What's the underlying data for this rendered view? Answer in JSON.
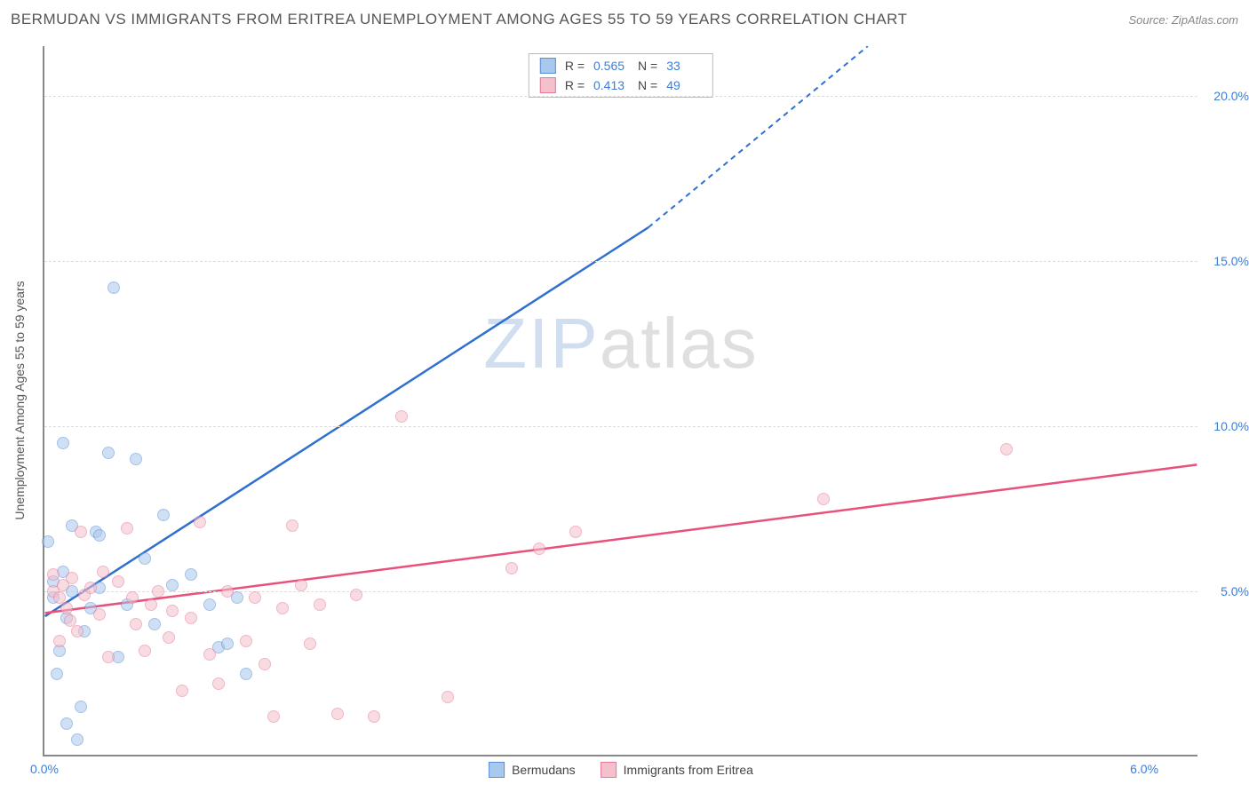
{
  "header": {
    "title": "BERMUDAN VS IMMIGRANTS FROM ERITREA UNEMPLOYMENT AMONG AGES 55 TO 59 YEARS CORRELATION CHART",
    "source": "Source: ZipAtlas.com"
  },
  "watermark": {
    "left": "ZIP",
    "right": "atlas"
  },
  "chart": {
    "type": "scatter-with-regression",
    "y_axis_title": "Unemployment Among Ages 55 to 59 years",
    "background_color": "#ffffff",
    "grid_color": "#dddddd",
    "axis_color": "#888888",
    "xlim": [
      0.0,
      6.3
    ],
    "ylim": [
      0.0,
      21.5
    ],
    "x_ticks": [
      {
        "v": 0.0,
        "label": "0.0%"
      },
      {
        "v": 6.0,
        "label": "6.0%"
      }
    ],
    "y_ticks": [
      {
        "v": 5.0,
        "label": "5.0%"
      },
      {
        "v": 10.0,
        "label": "10.0%"
      },
      {
        "v": 15.0,
        "label": "15.0%"
      },
      {
        "v": 20.0,
        "label": "20.0%"
      }
    ],
    "point_radius": 7,
    "point_opacity": 0.55,
    "series": [
      {
        "id": "bermudans",
        "label": "Bermudans",
        "color_fill": "#a8c8ed",
        "color_stroke": "#5a8fd6",
        "trend_color": "#2e6fd0",
        "stats": {
          "R": "0.565",
          "N": "33"
        },
        "trend": {
          "x1": 0.0,
          "y1": 4.2,
          "x2_solid": 3.3,
          "y2_solid": 16.0,
          "x2_dash": 4.5,
          "y2_dash": 21.5
        },
        "points": [
          [
            0.02,
            6.5
          ],
          [
            0.05,
            4.8
          ],
          [
            0.05,
            5.3
          ],
          [
            0.07,
            2.5
          ],
          [
            0.08,
            3.2
          ],
          [
            0.1,
            5.6
          ],
          [
            0.1,
            9.5
          ],
          [
            0.12,
            1.0
          ],
          [
            0.15,
            5.0
          ],
          [
            0.15,
            7.0
          ],
          [
            0.18,
            0.5
          ],
          [
            0.2,
            1.5
          ],
          [
            0.22,
            3.8
          ],
          [
            0.25,
            4.5
          ],
          [
            0.28,
            6.8
          ],
          [
            0.3,
            5.1
          ],
          [
            0.35,
            9.2
          ],
          [
            0.38,
            14.2
          ],
          [
            0.4,
            3.0
          ],
          [
            0.45,
            4.6
          ],
          [
            0.5,
            9.0
          ],
          [
            0.55,
            6.0
          ],
          [
            0.6,
            4.0
          ],
          [
            0.65,
            7.3
          ],
          [
            0.7,
            5.2
          ],
          [
            0.8,
            5.5
          ],
          [
            0.9,
            4.6
          ],
          [
            0.95,
            3.3
          ],
          [
            1.0,
            3.4
          ],
          [
            1.05,
            4.8
          ],
          [
            1.1,
            2.5
          ],
          [
            0.3,
            6.7
          ],
          [
            0.12,
            4.2
          ]
        ]
      },
      {
        "id": "eritrea",
        "label": "Immigrants from Eritrea",
        "color_fill": "#f4c0cc",
        "color_stroke": "#e67a9a",
        "trend_color": "#e7517b",
        "stats": {
          "R": "0.413",
          "N": "49"
        },
        "trend": {
          "x1": 0.0,
          "y1": 4.3,
          "x2_solid": 6.3,
          "y2_solid": 8.8,
          "x2_dash": 6.3,
          "y2_dash": 8.8
        },
        "points": [
          [
            0.05,
            5.0
          ],
          [
            0.08,
            4.8
          ],
          [
            0.1,
            5.2
          ],
          [
            0.12,
            4.5
          ],
          [
            0.15,
            5.4
          ],
          [
            0.18,
            3.8
          ],
          [
            0.2,
            6.8
          ],
          [
            0.22,
            4.9
          ],
          [
            0.25,
            5.1
          ],
          [
            0.3,
            4.3
          ],
          [
            0.35,
            3.0
          ],
          [
            0.4,
            5.3
          ],
          [
            0.45,
            6.9
          ],
          [
            0.5,
            4.0
          ],
          [
            0.55,
            3.2
          ],
          [
            0.58,
            4.6
          ],
          [
            0.62,
            5.0
          ],
          [
            0.68,
            3.6
          ],
          [
            0.7,
            4.4
          ],
          [
            0.75,
            2.0
          ],
          [
            0.8,
            4.2
          ],
          [
            0.85,
            7.1
          ],
          [
            0.9,
            3.1
          ],
          [
            0.95,
            2.2
          ],
          [
            1.0,
            5.0
          ],
          [
            1.1,
            3.5
          ],
          [
            1.15,
            4.8
          ],
          [
            1.2,
            2.8
          ],
          [
            1.25,
            1.2
          ],
          [
            1.3,
            4.5
          ],
          [
            1.35,
            7.0
          ],
          [
            1.4,
            5.2
          ],
          [
            1.45,
            3.4
          ],
          [
            1.5,
            4.6
          ],
          [
            1.6,
            1.3
          ],
          [
            1.7,
            4.9
          ],
          [
            1.8,
            1.2
          ],
          [
            1.95,
            10.3
          ],
          [
            2.2,
            1.8
          ],
          [
            2.55,
            5.7
          ],
          [
            2.7,
            6.3
          ],
          [
            2.9,
            6.8
          ],
          [
            4.25,
            7.8
          ],
          [
            5.25,
            9.3
          ],
          [
            0.32,
            5.6
          ],
          [
            0.48,
            4.8
          ],
          [
            0.05,
            5.5
          ],
          [
            0.14,
            4.1
          ],
          [
            0.08,
            3.5
          ]
        ]
      }
    ]
  }
}
